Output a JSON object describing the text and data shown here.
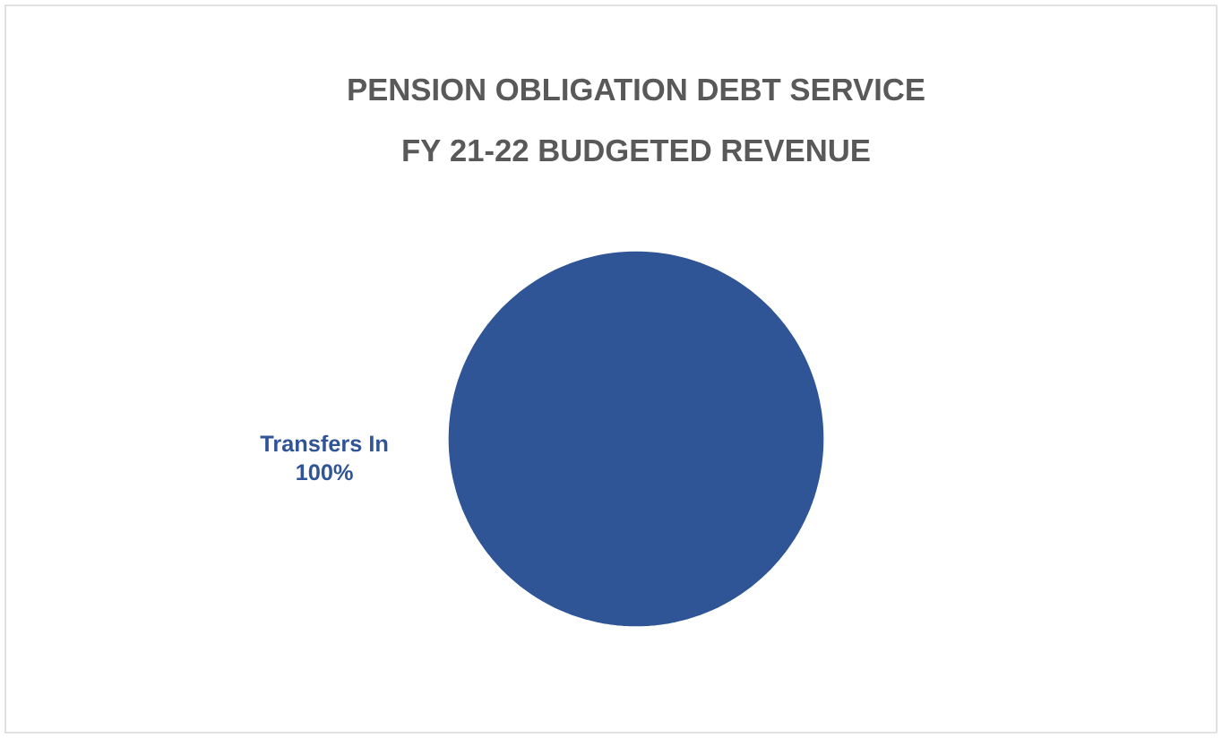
{
  "chart_data": {
    "type": "pie",
    "title": "PENSION OBLIGATION DEBT SERVICE",
    "subtitle": "FY 21-22 BUDGETED REVENUE",
    "categories": [
      "Transfers In"
    ],
    "values": [
      100
    ],
    "value_labels": [
      "100%"
    ],
    "colors": [
      "#2f5597"
    ]
  }
}
